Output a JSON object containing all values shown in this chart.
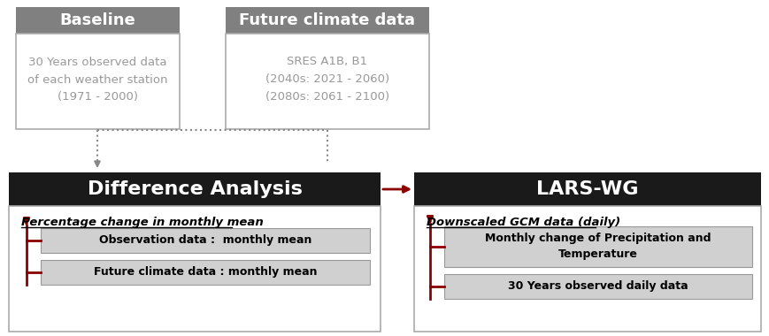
{
  "bg_color": "#ffffff",
  "dark_header_color": "#1a1a1a",
  "gray_header_color": "#808080",
  "light_gray_box": "#d0d0d0",
  "white_box": "#ffffff",
  "red_arrow_color": "#8b0000",
  "gray_arrow_color": "#888888",
  "box_border_color": "#aaaaaa",
  "baseline_header": "Baseline",
  "baseline_text": "30 Years observed data\nof each weather station\n(1971 - 2000)",
  "future_header": "Future climate data",
  "future_text": "SRES A1B, B1\n(2040s: 2021 - 2060)\n(2080s: 2061 - 2100)",
  "diff_header": "Difference Analysis",
  "diff_subtitle": "Percentage change in monthly mean",
  "diff_box1": "Observation data :  monthly mean",
  "diff_box2": "Future climate data : monthly mean",
  "lars_header": "LARS-WG",
  "lars_subtitle": "Downscaled GCM data (daily)",
  "lars_box1": "Monthly change of Precipitation and\nTemperature",
  "lars_box2": "30 Years observed daily data"
}
